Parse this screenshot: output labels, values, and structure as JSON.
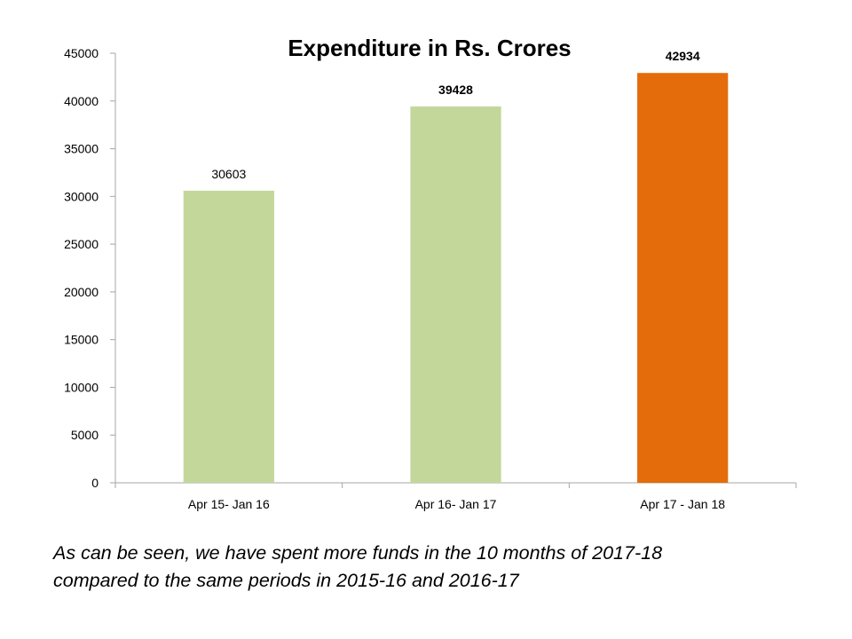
{
  "chart_data": {
    "type": "bar",
    "title": "Expenditure in Rs. Crores",
    "categories": [
      "Apr 15- Jan 16",
      "Apr 16- Jan 17",
      "Apr 17 - Jan 18"
    ],
    "values": [
      30603,
      39428,
      42934
    ],
    "value_label_bold": [
      false,
      true,
      true
    ],
    "bar_colors": [
      "#c4d79b",
      "#c4d79b",
      "#e46c0a"
    ],
    "ylim": [
      0,
      45000
    ],
    "yticks": [
      0,
      5000,
      10000,
      15000,
      20000,
      25000,
      30000,
      35000,
      40000,
      45000
    ],
    "xlabel": "",
    "ylabel": "",
    "grid": false,
    "legend": "none",
    "axis_color": "#a6a6a6"
  },
  "caption": {
    "line1": "As can be seen, we have spent more funds in the 10 months of 2017-18",
    "line2": "compared to the same periods in 2015-16 and 2016-17"
  }
}
